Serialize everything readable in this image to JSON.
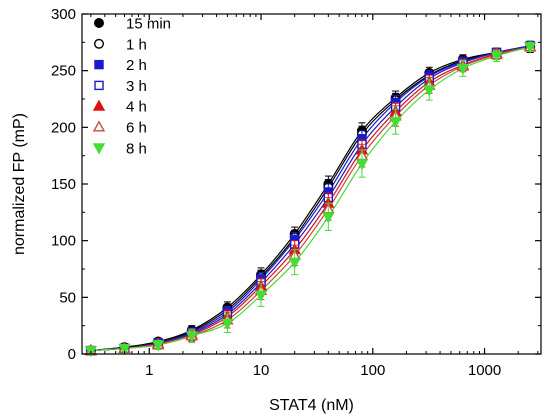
{
  "chart_data": {
    "type": "scatter",
    "title": "",
    "xlabel": "STAT4 (nM)",
    "ylabel": "normalized FP (mP)",
    "x_scale": "log",
    "xlim": [
      0.25,
      3200
    ],
    "ylim": [
      0,
      300
    ],
    "x_ticks": [
      1,
      10,
      100,
      1000
    ],
    "x_tick_labels": [
      "1",
      "10",
      "100",
      "1000"
    ],
    "y_ticks": [
      0,
      50,
      100,
      150,
      200,
      250,
      300
    ],
    "y_tick_labels": [
      "0",
      "50",
      "100",
      "150",
      "200",
      "250",
      "300"
    ],
    "grid": false,
    "legend_position": "top-left",
    "x": [
      0.3,
      0.6,
      1.2,
      2.4,
      5,
      10,
      20,
      40,
      80,
      160,
      320,
      640,
      1280,
      2560
    ],
    "series": [
      {
        "name": "15 min",
        "marker": "circle",
        "filled": true,
        "color": "#000000",
        "values": [
          3,
          6,
          11,
          21,
          41,
          70,
          106,
          150,
          197,
          226,
          248,
          260,
          266,
          270
        ],
        "error": [
          2,
          3,
          3,
          4,
          5,
          6,
          6,
          7,
          7,
          6,
          5,
          4,
          4,
          4
        ]
      },
      {
        "name": "1 h",
        "marker": "circle",
        "filled": false,
        "color": "#000000",
        "values": [
          3,
          6,
          10,
          20,
          39,
          68,
          103,
          147,
          194,
          224,
          246,
          259,
          266,
          271
        ],
        "error": [
          2,
          3,
          3,
          4,
          5,
          6,
          6,
          7,
          7,
          6,
          5,
          4,
          4,
          4
        ]
      },
      {
        "name": "2 h",
        "marker": "square",
        "filled": true,
        "color": "#1a1acc",
        "values": [
          3,
          5,
          10,
          19,
          37,
          66,
          101,
          143,
          190,
          222,
          245,
          258,
          266,
          272
        ],
        "error": [
          2,
          3,
          3,
          4,
          5,
          6,
          6,
          7,
          7,
          6,
          5,
          4,
          4,
          4
        ]
      },
      {
        "name": "3 h",
        "marker": "square",
        "filled": false,
        "color": "#1a1acc",
        "values": [
          3,
          5,
          9,
          18,
          35,
          63,
          97,
          138,
          185,
          218,
          243,
          257,
          266,
          272
        ],
        "error": [
          2,
          3,
          3,
          4,
          6,
          7,
          7,
          8,
          8,
          7,
          6,
          5,
          4,
          4
        ]
      },
      {
        "name": "4 h",
        "marker": "triangle-up",
        "filled": true,
        "color": "#dd1111",
        "values": [
          3,
          5,
          9,
          17,
          33,
          60,
          92,
          133,
          180,
          214,
          240,
          255,
          265,
          271
        ],
        "error": [
          2,
          3,
          3,
          5,
          6,
          7,
          8,
          9,
          9,
          8,
          6,
          5,
          4,
          4
        ]
      },
      {
        "name": "6 h",
        "marker": "triangle-up",
        "filled": false,
        "color": "#cc4444",
        "values": [
          3,
          5,
          8,
          16,
          30,
          56,
          87,
          128,
          175,
          210,
          237,
          254,
          264,
          271
        ],
        "error": [
          2,
          3,
          3,
          5,
          7,
          8,
          9,
          10,
          10,
          9,
          7,
          5,
          4,
          4
        ]
      },
      {
        "name": "8 h",
        "marker": "triangle-down",
        "filled": true,
        "color": "#44dd33",
        "values": [
          3,
          5,
          8,
          16,
          27,
          52,
          81,
          121,
          168,
          205,
          233,
          252,
          263,
          271
        ],
        "error": [
          2,
          3,
          4,
          6,
          8,
          10,
          11,
          12,
          12,
          11,
          9,
          7,
          5,
          4
        ]
      }
    ]
  }
}
